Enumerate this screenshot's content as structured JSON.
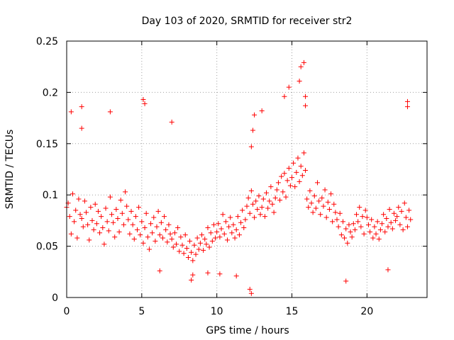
{
  "chart_data": {
    "type": "scatter",
    "title": "Day 103 of 2020, SRMTID for receiver str2",
    "xlabel": "GPS time / hours",
    "ylabel": "SRMTID / TECUs",
    "xlim": [
      0,
      24
    ],
    "ylim": [
      0,
      0.25
    ],
    "x_ticks": [
      0,
      5,
      10,
      15,
      20
    ],
    "x_tick_labels": [
      "0",
      "5",
      "10",
      "15",
      "20"
    ],
    "y_ticks": [
      0,
      0.05,
      0.1,
      0.15,
      0.2,
      0.25
    ],
    "y_tick_labels": [
      "0",
      "0.05",
      "0.1",
      "0.15",
      "0.2",
      "0.25"
    ],
    "grid": true,
    "marker": "+",
    "color": "#ff0000",
    "series": [
      {
        "name": "str2",
        "x": [
          0.0,
          0.1,
          0.2,
          0.3,
          0.4,
          0.5,
          0.6,
          0.7,
          0.8,
          0.9,
          1.0,
          1.1,
          1.2,
          1.3,
          1.4,
          1.5,
          1.6,
          1.7,
          1.8,
          1.9,
          2.0,
          2.1,
          2.2,
          2.3,
          2.4,
          2.5,
          2.6,
          2.7,
          2.8,
          2.9,
          3.0,
          3.1,
          3.2,
          3.3,
          3.4,
          3.5,
          3.6,
          3.7,
          3.8,
          3.9,
          4.0,
          4.1,
          4.2,
          4.3,
          4.4,
          4.5,
          4.6,
          4.7,
          4.8,
          4.9,
          5.0,
          5.1,
          5.2,
          5.3,
          5.4,
          5.5,
          5.6,
          5.7,
          5.8,
          5.9,
          6.0,
          6.1,
          6.2,
          6.3,
          6.4,
          6.5,
          6.6,
          6.7,
          6.8,
          6.9,
          7.0,
          7.1,
          7.2,
          7.3,
          7.4,
          7.5,
          7.6,
          7.7,
          7.8,
          7.9,
          8.0,
          8.1,
          8.2,
          8.3,
          8.4,
          8.5,
          8.6,
          8.7,
          8.8,
          8.9,
          9.0,
          9.1,
          9.2,
          9.3,
          9.4,
          9.5,
          9.6,
          9.7,
          9.8,
          9.9,
          10.0,
          10.1,
          10.2,
          10.3,
          10.4,
          10.5,
          10.6,
          10.7,
          10.8,
          10.9,
          11.0,
          11.1,
          11.2,
          11.3,
          11.4,
          11.5,
          11.6,
          11.7,
          11.8,
          11.9,
          12.0,
          12.1,
          12.2,
          12.3,
          12.4,
          12.5,
          12.6,
          12.7,
          12.8,
          12.9,
          13.0,
          13.1,
          13.2,
          13.3,
          13.4,
          13.5,
          13.6,
          13.7,
          13.8,
          13.9,
          14.0,
          14.1,
          14.2,
          14.3,
          14.4,
          14.5,
          14.6,
          14.7,
          14.8,
          14.9,
          15.0,
          15.1,
          15.2,
          15.3,
          15.4,
          15.5,
          15.6,
          15.7,
          15.8,
          15.9,
          16.0,
          16.1,
          16.2,
          16.3,
          16.4,
          16.5,
          16.6,
          16.7,
          16.8,
          16.9,
          17.0,
          17.1,
          17.2,
          17.3,
          17.4,
          17.5,
          17.6,
          17.7,
          17.8,
          17.9,
          18.0,
          18.1,
          18.2,
          18.3,
          18.4,
          18.5,
          18.6,
          18.7,
          18.8,
          18.9,
          19.0,
          19.1,
          19.2,
          19.3,
          19.4,
          19.5,
          19.6,
          19.7,
          19.8,
          19.9,
          20.0,
          20.1,
          20.2,
          20.3,
          20.4,
          20.5,
          20.6,
          20.7,
          20.8,
          20.9,
          21.0,
          21.1,
          21.2,
          21.3,
          21.4,
          21.5,
          21.6,
          21.7,
          21.8,
          21.9,
          22.0,
          22.1,
          22.2,
          22.3,
          22.4,
          22.5,
          22.6,
          22.7,
          22.8,
          22.9,
          0.3,
          1.0,
          1.0,
          2.9,
          5.1,
          5.2,
          7.0,
          12.3,
          12.4,
          12.5,
          13.0,
          14.5,
          14.8,
          15.5,
          15.6,
          15.8,
          15.9,
          15.9,
          22.7,
          22.7,
          8.3,
          8.4,
          12.2,
          12.3,
          18.6,
          21.4,
          6.2,
          9.4,
          11.3,
          10.2
        ],
        "y": [
          0.088,
          0.092,
          0.079,
          0.062,
          0.101,
          0.074,
          0.085,
          0.058,
          0.096,
          0.081,
          0.077,
          0.069,
          0.094,
          0.083,
          0.071,
          0.056,
          0.088,
          0.075,
          0.066,
          0.091,
          0.072,
          0.084,
          0.063,
          0.079,
          0.068,
          0.052,
          0.087,
          0.074,
          0.065,
          0.098,
          0.081,
          0.073,
          0.059,
          0.086,
          0.077,
          0.064,
          0.095,
          0.082,
          0.071,
          0.103,
          0.089,
          0.076,
          0.062,
          0.084,
          0.071,
          0.057,
          0.079,
          0.066,
          0.088,
          0.061,
          0.074,
          0.053,
          0.068,
          0.082,
          0.059,
          0.047,
          0.072,
          0.063,
          0.078,
          0.055,
          0.069,
          0.084,
          0.061,
          0.073,
          0.058,
          0.079,
          0.066,
          0.054,
          0.071,
          0.062,
          0.057,
          0.049,
          0.063,
          0.052,
          0.068,
          0.045,
          0.059,
          0.051,
          0.043,
          0.061,
          0.048,
          0.039,
          0.055,
          0.044,
          0.036,
          0.051,
          0.042,
          0.058,
          0.047,
          0.053,
          0.061,
          0.046,
          0.057,
          0.052,
          0.068,
          0.049,
          0.063,
          0.055,
          0.071,
          0.058,
          0.064,
          0.072,
          0.059,
          0.067,
          0.081,
          0.062,
          0.074,
          0.056,
          0.069,
          0.078,
          0.063,
          0.071,
          0.058,
          0.066,
          0.079,
          0.061,
          0.073,
          0.085,
          0.068,
          0.076,
          0.089,
          0.097,
          0.082,
          0.104,
          0.091,
          0.078,
          0.094,
          0.086,
          0.099,
          0.081,
          0.088,
          0.096,
          0.079,
          0.102,
          0.087,
          0.094,
          0.108,
          0.091,
          0.083,
          0.097,
          0.105,
          0.112,
          0.095,
          0.118,
          0.103,
          0.121,
          0.098,
          0.114,
          0.126,
          0.109,
          0.117,
          0.131,
          0.108,
          0.122,
          0.136,
          0.113,
          0.128,
          0.119,
          0.141,
          0.124,
          0.096,
          0.088,
          0.104,
          0.092,
          0.083,
          0.099,
          0.087,
          0.112,
          0.094,
          0.081,
          0.097,
          0.089,
          0.105,
          0.078,
          0.093,
          0.086,
          0.101,
          0.074,
          0.091,
          0.083,
          0.076,
          0.069,
          0.082,
          0.061,
          0.074,
          0.058,
          0.067,
          0.053,
          0.071,
          0.064,
          0.059,
          0.072,
          0.066,
          0.081,
          0.074,
          0.088,
          0.069,
          0.079,
          0.062,
          0.085,
          0.078,
          0.071,
          0.064,
          0.076,
          0.058,
          0.069,
          0.062,
          0.074,
          0.057,
          0.066,
          0.072,
          0.081,
          0.064,
          0.077,
          0.069,
          0.086,
          0.073,
          0.067,
          0.082,
          0.075,
          0.079,
          0.088,
          0.071,
          0.084,
          0.066,
          0.092,
          0.078,
          0.069,
          0.085,
          0.076,
          0.181,
          0.186,
          0.165,
          0.181,
          0.193,
          0.189,
          0.171,
          0.147,
          0.163,
          0.178,
          0.182,
          0.196,
          0.205,
          0.211,
          0.225,
          0.229,
          0.196,
          0.187,
          0.191,
          0.186,
          0.017,
          0.022,
          0.008,
          0.004,
          0.016,
          0.027,
          0.026,
          0.024,
          0.021,
          0.023
        ]
      }
    ]
  }
}
